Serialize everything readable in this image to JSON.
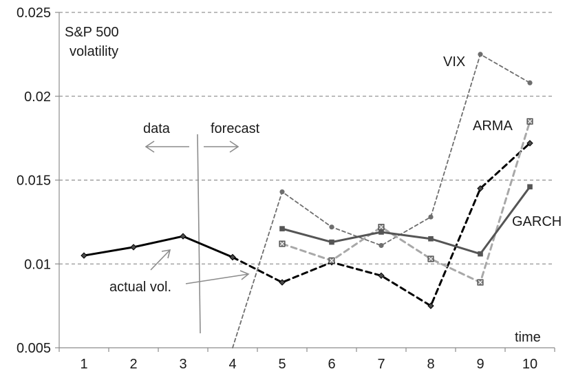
{
  "chart_data": {
    "type": "line",
    "x": [
      1,
      2,
      3,
      4,
      5,
      6,
      7,
      8,
      9,
      10
    ],
    "x_tick_labels": [
      "1",
      "2",
      "3",
      "4",
      "5",
      "6",
      "7",
      "8",
      "9",
      "10"
    ],
    "y_tick_labels": [
      "0.005",
      "0.01",
      "0.015",
      "0.02",
      "0.025"
    ],
    "y_ticks": [
      0.005,
      0.01,
      0.015,
      0.02,
      0.025
    ],
    "ylim": [
      0.005,
      0.025
    ],
    "xlabel": "time",
    "ylabel": "S&P 500 volatility",
    "ylabel_lines": [
      "S&P 500",
      "volatility"
    ],
    "grid": "horizontal dashed",
    "series": [
      {
        "key": "actual-data",
        "values": [
          0.0105,
          0.011,
          0.01165,
          0.0104,
          null,
          null,
          null,
          null,
          null,
          null
        ],
        "color": "#000000",
        "style": "solid",
        "marker": "diamond"
      },
      {
        "key": "actual-forecast",
        "values": [
          null,
          null,
          null,
          0.0104,
          0.0089,
          0.0101,
          0.0093,
          0.0075,
          0.0145,
          0.0172
        ],
        "color": "#000000",
        "style": "dashed",
        "marker": "diamond"
      },
      {
        "name": "VIX",
        "values": [
          null,
          null,
          null,
          0.005,
          0.0143,
          0.0122,
          0.0111,
          0.0128,
          0.0225,
          0.0208
        ],
        "color": "#6e6e6e",
        "style": "dashed-thin",
        "marker": "circle"
      },
      {
        "name": "ARMA",
        "values": [
          null,
          null,
          null,
          null,
          0.0112,
          0.0102,
          0.0122,
          0.0103,
          0.0089,
          0.0185
        ],
        "color": "#a8a8a8",
        "style": "dashed",
        "marker": "x-square"
      },
      {
        "name": "GARCH",
        "values": [
          null,
          null,
          null,
          null,
          0.0121,
          0.0113,
          0.0119,
          0.0115,
          0.0106,
          0.0146
        ],
        "color": "#555555",
        "style": "solid",
        "marker": "square"
      }
    ],
    "annotations": {
      "data": "data",
      "forecast": "forecast",
      "actual": "actual vol.",
      "vix": "VIX",
      "arma": "ARMA",
      "garch": "GARCH"
    }
  }
}
